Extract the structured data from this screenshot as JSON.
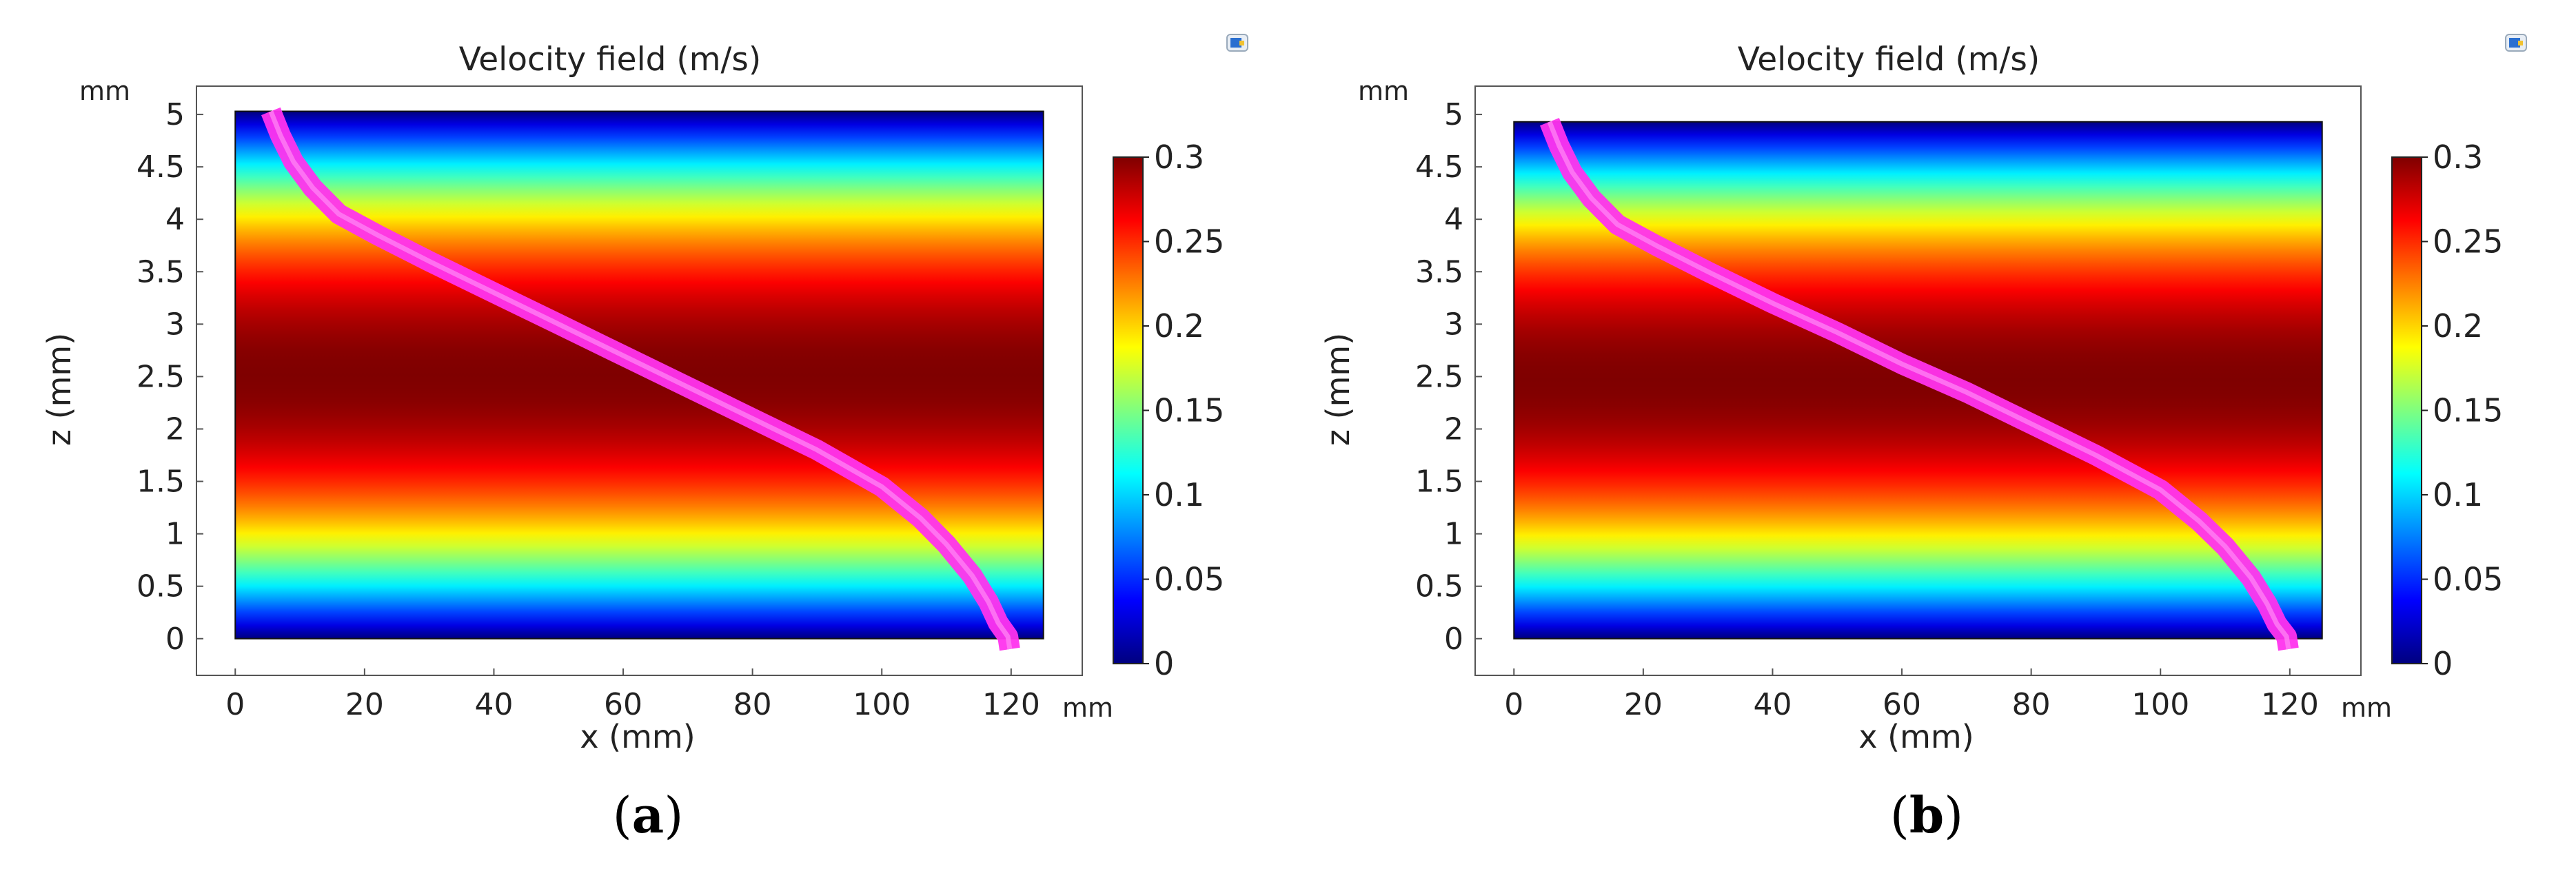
{
  "colorscale": {
    "name": "jet",
    "stops": [
      "#00007f",
      "#0000ff",
      "#007fff",
      "#00ffff",
      "#7fff7f",
      "#ffff00",
      "#ff7f00",
      "#ff0000",
      "#7f0000"
    ]
  },
  "streamline_color": "#ff33ee",
  "chart_data": [
    {
      "type": "heatmap",
      "panel_label": "(a)",
      "panel_letter": "a",
      "title": "Velocity field (m/s)",
      "xlabel": "x (mm)",
      "ylabel": "z (mm)",
      "x_unit": "mm",
      "y_unit": "mm",
      "x_ticks": [
        0,
        20,
        40,
        60,
        80,
        100,
        120
      ],
      "x_tick_labels": [
        "0",
        "20",
        "40",
        "60",
        "80",
        "100",
        "120"
      ],
      "y_ticks": [
        0,
        0.5,
        1,
        1.5,
        2,
        2.5,
        3,
        3.5,
        4,
        4.5,
        5
      ],
      "y_tick_labels": [
        "0",
        "0.5",
        "1",
        "1.5",
        "2",
        "2.5",
        "3",
        "3.5",
        "4",
        "4.5",
        "5"
      ],
      "xlim": [
        -6,
        131
      ],
      "ylim": [
        -0.35,
        5.27
      ],
      "domain_x": [
        0,
        125
      ],
      "domain_z": [
        0,
        5.03
      ],
      "colorbar": {
        "range": [
          0,
          0.3
        ],
        "ticks": [
          0,
          0.05,
          0.1,
          0.15,
          0.2,
          0.25,
          0.3
        ],
        "tick_labels": [
          "0",
          "0.05",
          "0.1",
          "0.15",
          "0.2",
          "0.25",
          "0.3"
        ]
      },
      "max_velocity": 0.3,
      "velocity_profile": "parabolic in z, maximum at z = 2.5 mm",
      "streamline": {
        "x": [
          5.5,
          7,
          9,
          12,
          16,
          22,
          30,
          40,
          50,
          60,
          70,
          80,
          90,
          100,
          106,
          110,
          114,
          116.5,
          118,
          119.5,
          119.8
        ],
        "z": [
          5.03,
          4.8,
          4.55,
          4.3,
          4.05,
          3.85,
          3.6,
          3.3,
          3.0,
          2.7,
          2.4,
          2.1,
          1.8,
          1.45,
          1.15,
          0.9,
          0.6,
          0.35,
          0.15,
          0.02,
          -0.1
        ]
      }
    },
    {
      "type": "heatmap",
      "panel_label": "(b)",
      "panel_letter": "b",
      "title": "Velocity field (m/s)",
      "xlabel": "x (mm)",
      "ylabel": "z (mm)",
      "x_unit": "mm",
      "y_unit": "mm",
      "x_ticks": [
        0,
        20,
        40,
        60,
        80,
        100,
        120
      ],
      "x_tick_labels": [
        "0",
        "20",
        "40",
        "60",
        "80",
        "100",
        "120"
      ],
      "y_ticks": [
        0,
        0.5,
        1,
        1.5,
        2,
        2.5,
        3,
        3.5,
        4,
        4.5,
        5
      ],
      "y_tick_labels": [
        "0",
        "0.5",
        "1",
        "1.5",
        "2",
        "2.5",
        "3",
        "3.5",
        "4",
        "4.5",
        "5"
      ],
      "xlim": [
        -6,
        131
      ],
      "ylim": [
        -0.35,
        5.27
      ],
      "domain_x": [
        0,
        125
      ],
      "domain_z": [
        0,
        4.93
      ],
      "colorbar": {
        "range": [
          0,
          0.3
        ],
        "ticks": [
          0,
          0.05,
          0.1,
          0.15,
          0.2,
          0.25,
          0.3
        ],
        "tick_labels": [
          "0",
          "0.05",
          "0.1",
          "0.15",
          "0.2",
          "0.25",
          "0.3"
        ]
      },
      "max_velocity": 0.3,
      "velocity_profile": "parabolic in z, maximum at z = 2.47 mm",
      "streamline": {
        "x": [
          5.5,
          7,
          9,
          12,
          16,
          22,
          30,
          40,
          50,
          60,
          70,
          80,
          90,
          100,
          106,
          110,
          114,
          116.5,
          118,
          119.5,
          119.8
        ],
        "z": [
          4.93,
          4.7,
          4.45,
          4.2,
          3.95,
          3.75,
          3.5,
          3.2,
          2.92,
          2.62,
          2.35,
          2.05,
          1.75,
          1.42,
          1.12,
          0.88,
          0.58,
          0.33,
          0.14,
          0.02,
          -0.1
        ]
      }
    }
  ]
}
